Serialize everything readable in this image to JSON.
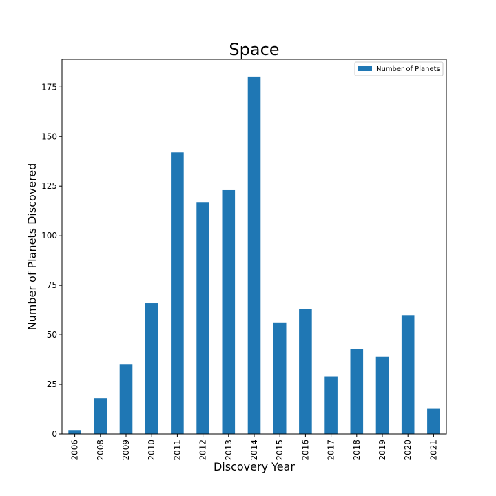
{
  "chart_data": {
    "type": "bar",
    "title": "Space",
    "xlabel": "Discovery Year",
    "ylabel": "Number of Planets Discovered",
    "categories": [
      "2006",
      "2008",
      "2009",
      "2010",
      "2011",
      "2012",
      "2013",
      "2014",
      "2015",
      "2016",
      "2017",
      "2018",
      "2019",
      "2020",
      "2021"
    ],
    "series": [
      {
        "name": "Number of Planets",
        "color": "#1f77b4",
        "values": [
          2,
          18,
          35,
          66,
          142,
          117,
          123,
          180,
          56,
          63,
          29,
          43,
          39,
          60,
          13
        ]
      }
    ],
    "ylim": [
      0,
      189
    ],
    "yticks": [
      0,
      25,
      50,
      75,
      100,
      125,
      150,
      175
    ],
    "legend": "top-right",
    "grid": false
  }
}
